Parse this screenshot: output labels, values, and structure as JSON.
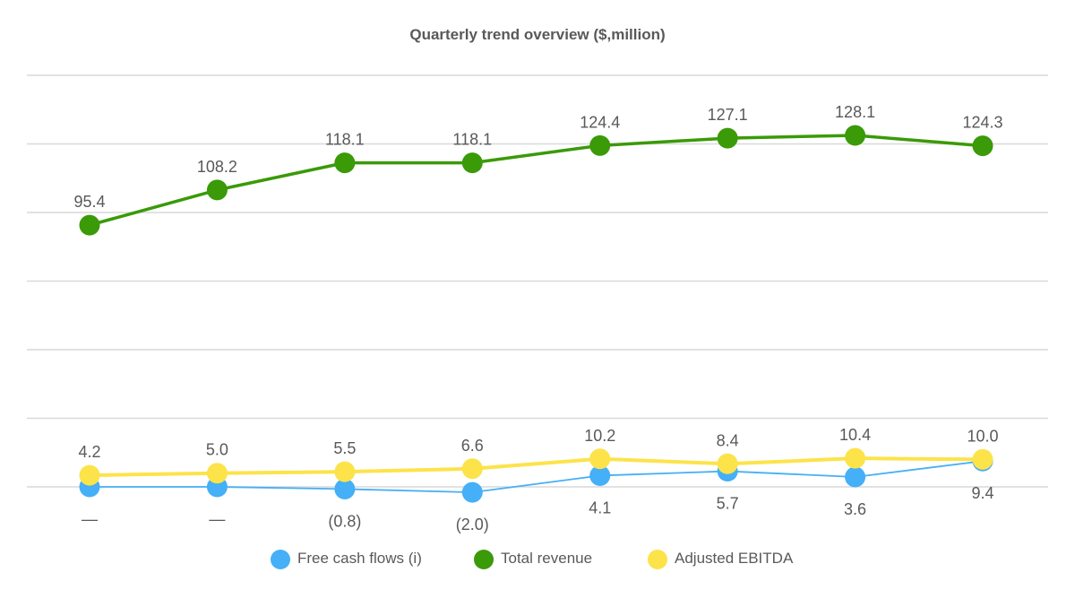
{
  "chart_data": {
    "type": "line",
    "title": "Quarterly trend overview ($,million)",
    "xlabel": "",
    "ylabel": "",
    "ylim": [
      0,
      150
    ],
    "grid": true,
    "grid_step": 25,
    "legend_position": "bottom",
    "points_per_series": 8,
    "series": [
      {
        "name": "Free cash flows (i)",
        "color": "#45AFF7",
        "values": [
          0,
          0,
          -0.8,
          -2.0,
          4.1,
          5.7,
          3.6,
          9.4
        ],
        "labels": [
          "—",
          "—",
          "(0.8)",
          "(2.0)",
          "4.1",
          "5.7",
          "3.6",
          "9.4"
        ],
        "label_side": "below"
      },
      {
        "name": "Total revenue",
        "color": "#3A9A08",
        "values": [
          95.4,
          108.2,
          118.1,
          118.1,
          124.4,
          127.1,
          128.1,
          124.3
        ],
        "labels": [
          "95.4",
          "108.2",
          "118.1",
          "118.1",
          "124.4",
          "127.1",
          "128.1",
          "124.3"
        ],
        "label_side": "above"
      },
      {
        "name": "Adjusted EBITDA",
        "color": "#FCE34A",
        "values": [
          4.2,
          5.0,
          5.5,
          6.6,
          10.2,
          8.4,
          10.4,
          10.0
        ],
        "labels": [
          "4.2",
          "5.0",
          "5.5",
          "6.6",
          "10.2",
          "8.4",
          "10.4",
          "10.0"
        ],
        "label_side": "above"
      }
    ]
  }
}
